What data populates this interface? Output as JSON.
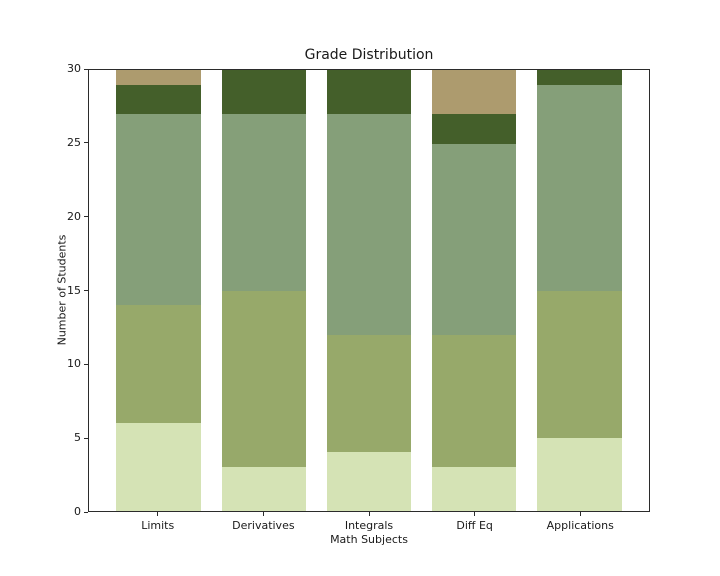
{
  "figure": {
    "background": "#ffffff",
    "spine_color": "#2b2b2b",
    "text_color": "#1a1a1a"
  },
  "chart_data": {
    "type": "bar",
    "stacked": true,
    "title": "Grade Distribution",
    "xlabel": "Math Subjects",
    "ylabel": "Number of Students",
    "categories": [
      "Limits",
      "Derivatives",
      "Integrals",
      "Diff Eq",
      "Applications"
    ],
    "series": [
      {
        "name": "segment-1-pale-green",
        "color": "#d5e3b5",
        "values": [
          6,
          3,
          4,
          3,
          5
        ]
      },
      {
        "name": "segment-2-olive-green",
        "color": "#97a96a",
        "values": [
          8,
          12,
          8,
          9,
          10
        ]
      },
      {
        "name": "segment-3-sage-green",
        "color": "#859f79",
        "values": [
          13,
          12,
          15,
          13,
          14
        ]
      },
      {
        "name": "segment-4-dark-green",
        "color": "#445f2a",
        "values": [
          2,
          3,
          3,
          2,
          1
        ]
      },
      {
        "name": "segment-5-tan",
        "color": "#ad9b6e",
        "values": [
          1,
          0,
          0,
          3,
          0
        ]
      }
    ],
    "totals": [
      30,
      30,
      30,
      30,
      30
    ],
    "ylim": [
      0,
      30
    ],
    "yticks": [
      0,
      5,
      10,
      15,
      20,
      25,
      30
    ],
    "bar_width_fraction": 0.8,
    "grid": false,
    "legend": "none"
  }
}
